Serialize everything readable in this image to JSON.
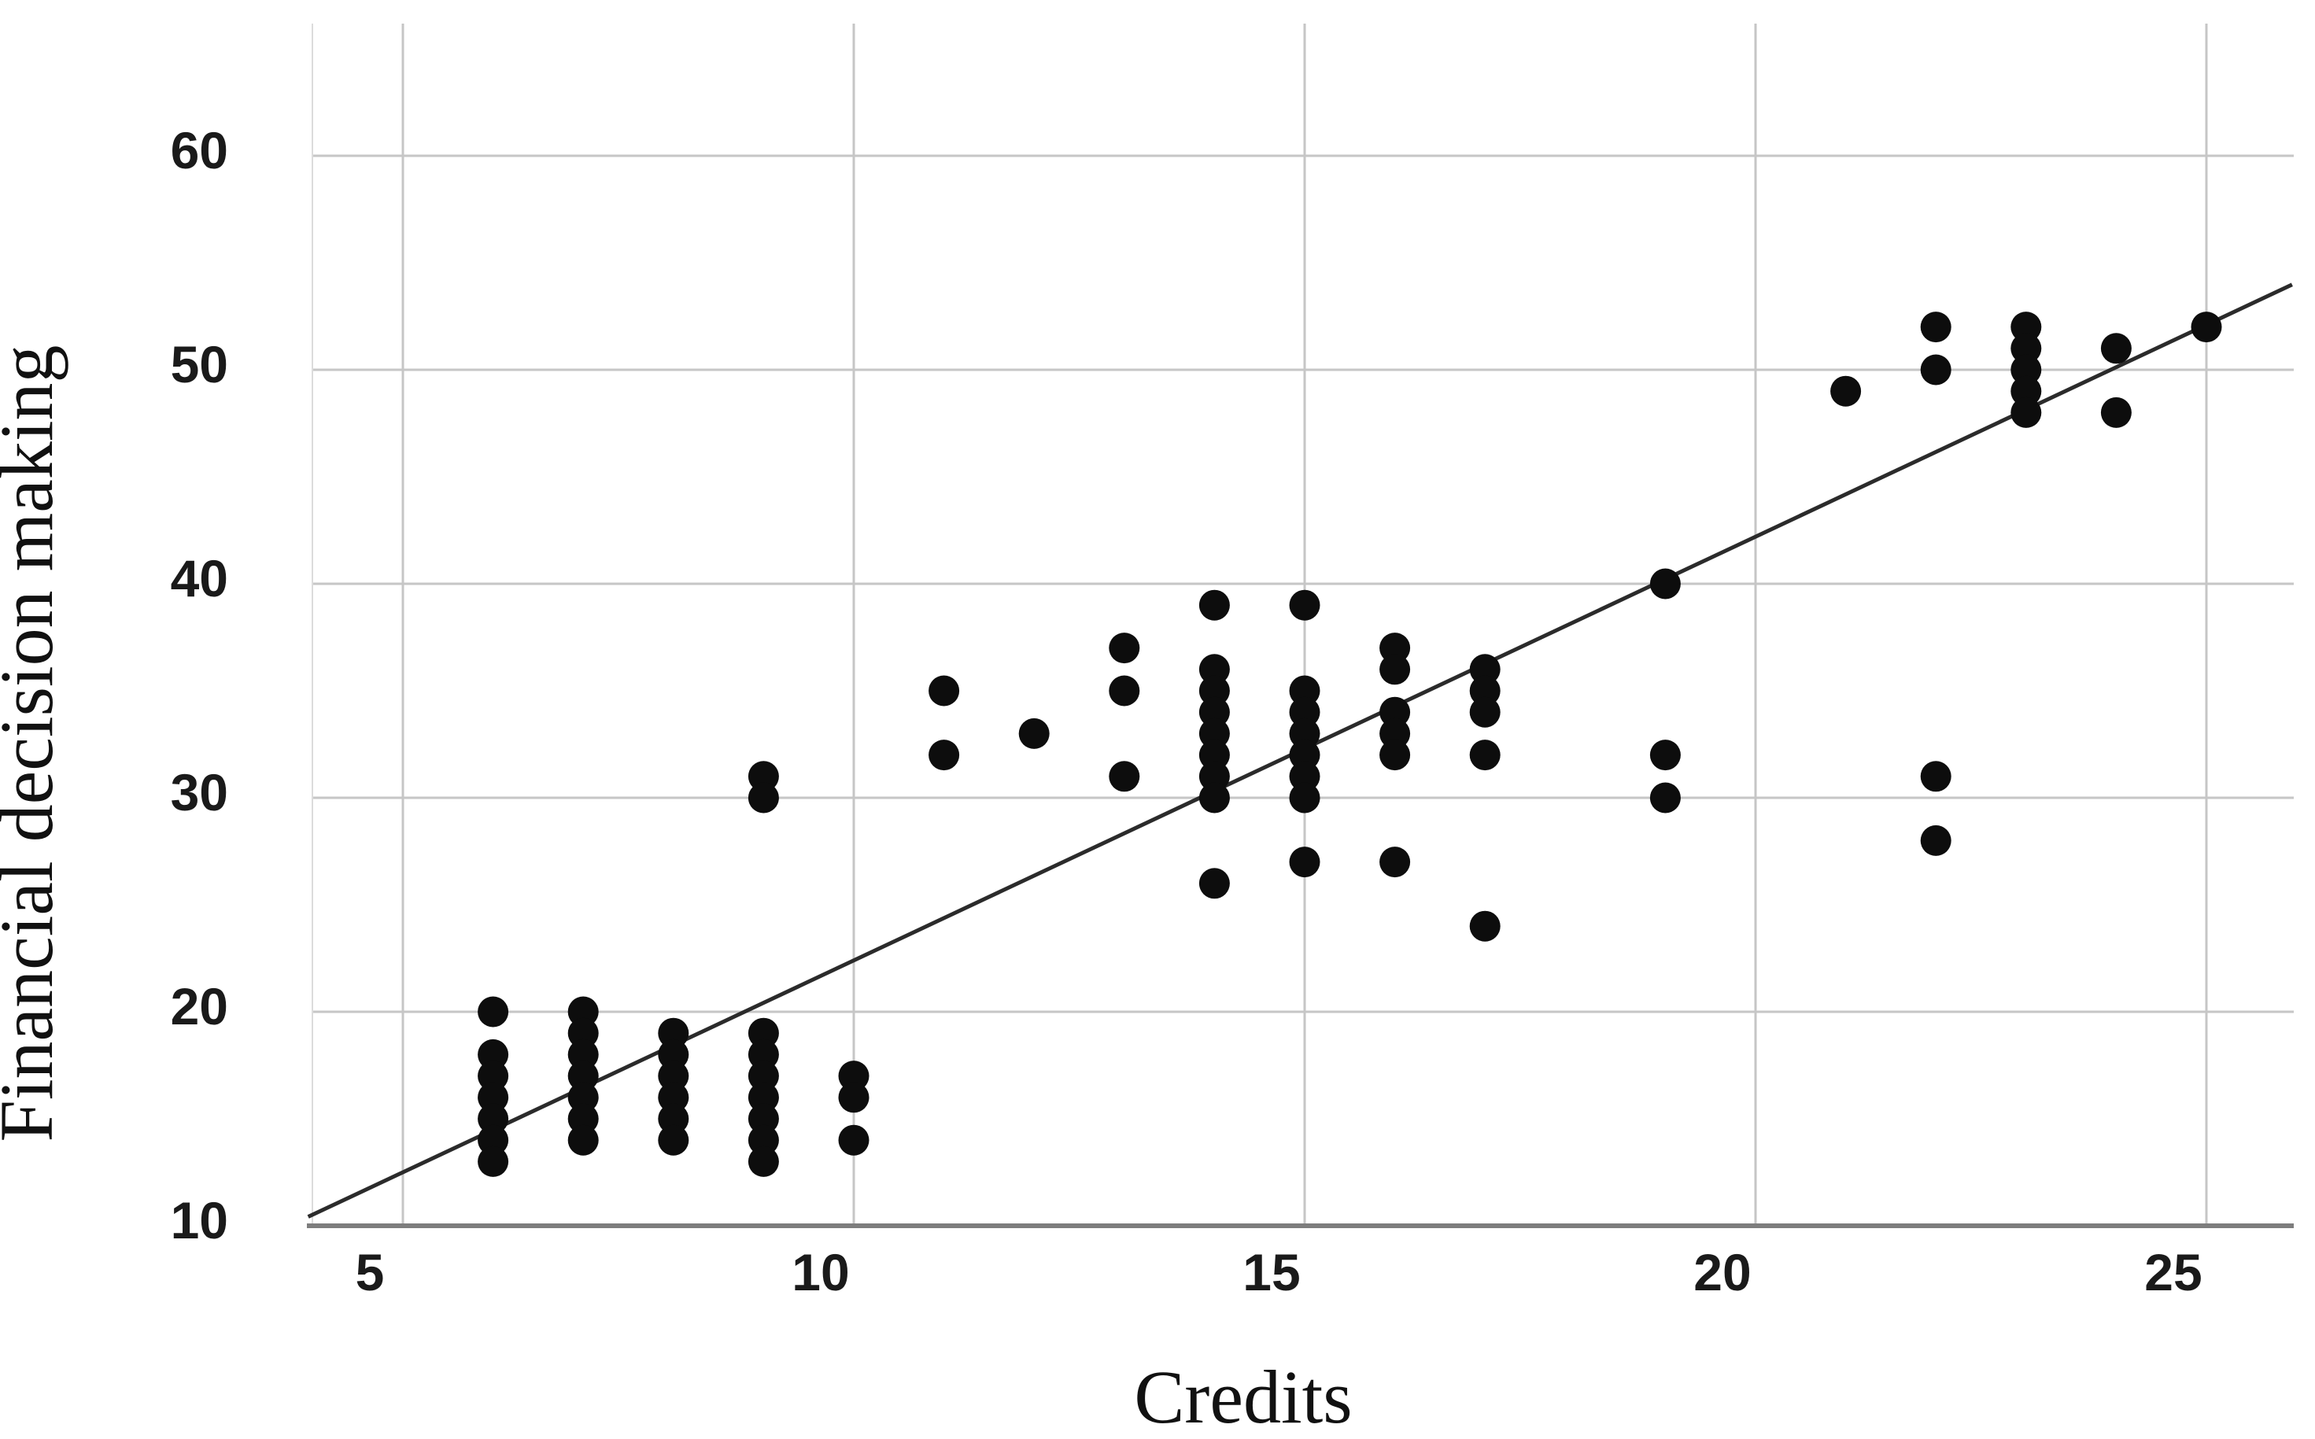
{
  "chart_data": {
    "type": "scatter",
    "title": "",
    "xlabel": "Credits",
    "ylabel": "Financial decision making",
    "x_ticks": [
      5,
      10,
      15,
      20,
      25
    ],
    "y_ticks": [
      10,
      20,
      30,
      40,
      50,
      60
    ],
    "xlim": [
      4,
      26
    ],
    "ylim": [
      10,
      66
    ],
    "grid": true,
    "legend_position": "none",
    "marker": "filled-black-circle",
    "colors": {
      "point": "#0d0d0d",
      "regression_line": "#2b2b2b",
      "gridline": "#c6c6c6",
      "axis_line": "#7d7d7d",
      "tick_text": "#1a1a1a",
      "title_text": "#111111",
      "background": "#ffffff"
    },
    "points": [
      [
        6,
        20
      ],
      [
        6,
        18
      ],
      [
        6,
        17
      ],
      [
        6,
        16
      ],
      [
        6,
        15
      ],
      [
        6,
        14
      ],
      [
        6,
        13
      ],
      [
        7,
        20
      ],
      [
        7,
        19
      ],
      [
        7,
        18
      ],
      [
        7,
        17
      ],
      [
        7,
        16
      ],
      [
        7,
        15
      ],
      [
        7,
        14
      ],
      [
        8,
        19
      ],
      [
        8,
        18
      ],
      [
        8,
        17
      ],
      [
        8,
        16
      ],
      [
        8,
        15
      ],
      [
        8,
        14
      ],
      [
        9,
        31
      ],
      [
        9,
        30
      ],
      [
        9,
        19
      ],
      [
        9,
        18
      ],
      [
        9,
        17
      ],
      [
        9,
        16
      ],
      [
        9,
        15
      ],
      [
        9,
        14
      ],
      [
        9,
        13
      ],
      [
        10,
        17
      ],
      [
        10,
        16
      ],
      [
        10,
        14
      ],
      [
        11,
        35
      ],
      [
        11,
        32
      ],
      [
        12,
        33
      ],
      [
        13,
        37
      ],
      [
        13,
        35
      ],
      [
        13,
        31
      ],
      [
        14,
        39
      ],
      [
        14,
        36
      ],
      [
        14,
        35
      ],
      [
        14,
        34
      ],
      [
        14,
        33
      ],
      [
        14,
        32
      ],
      [
        14,
        31
      ],
      [
        14,
        30
      ],
      [
        14,
        26
      ],
      [
        15,
        39
      ],
      [
        15,
        35
      ],
      [
        15,
        34
      ],
      [
        15,
        33
      ],
      [
        15,
        32
      ],
      [
        15,
        31
      ],
      [
        15,
        30
      ],
      [
        15,
        27
      ],
      [
        16,
        37
      ],
      [
        16,
        36
      ],
      [
        16,
        34
      ],
      [
        16,
        33
      ],
      [
        16,
        32
      ],
      [
        16,
        27
      ],
      [
        17,
        36
      ],
      [
        17,
        35
      ],
      [
        17,
        34
      ],
      [
        17,
        32
      ],
      [
        17,
        24
      ],
      [
        19,
        40
      ],
      [
        19,
        32
      ],
      [
        19,
        30
      ],
      [
        21,
        49
      ],
      [
        22,
        52
      ],
      [
        22,
        50
      ],
      [
        22,
        31
      ],
      [
        22,
        28
      ],
      [
        23,
        52
      ],
      [
        23,
        51
      ],
      [
        23,
        50
      ],
      [
        23,
        49
      ],
      [
        23,
        48
      ],
      [
        24,
        51
      ],
      [
        24,
        48
      ],
      [
        25,
        52
      ]
    ],
    "regression_line": {
      "slope": 1.98,
      "intercept": 2.6,
      "x_start": 3.95,
      "x_end": 25.95
    }
  }
}
